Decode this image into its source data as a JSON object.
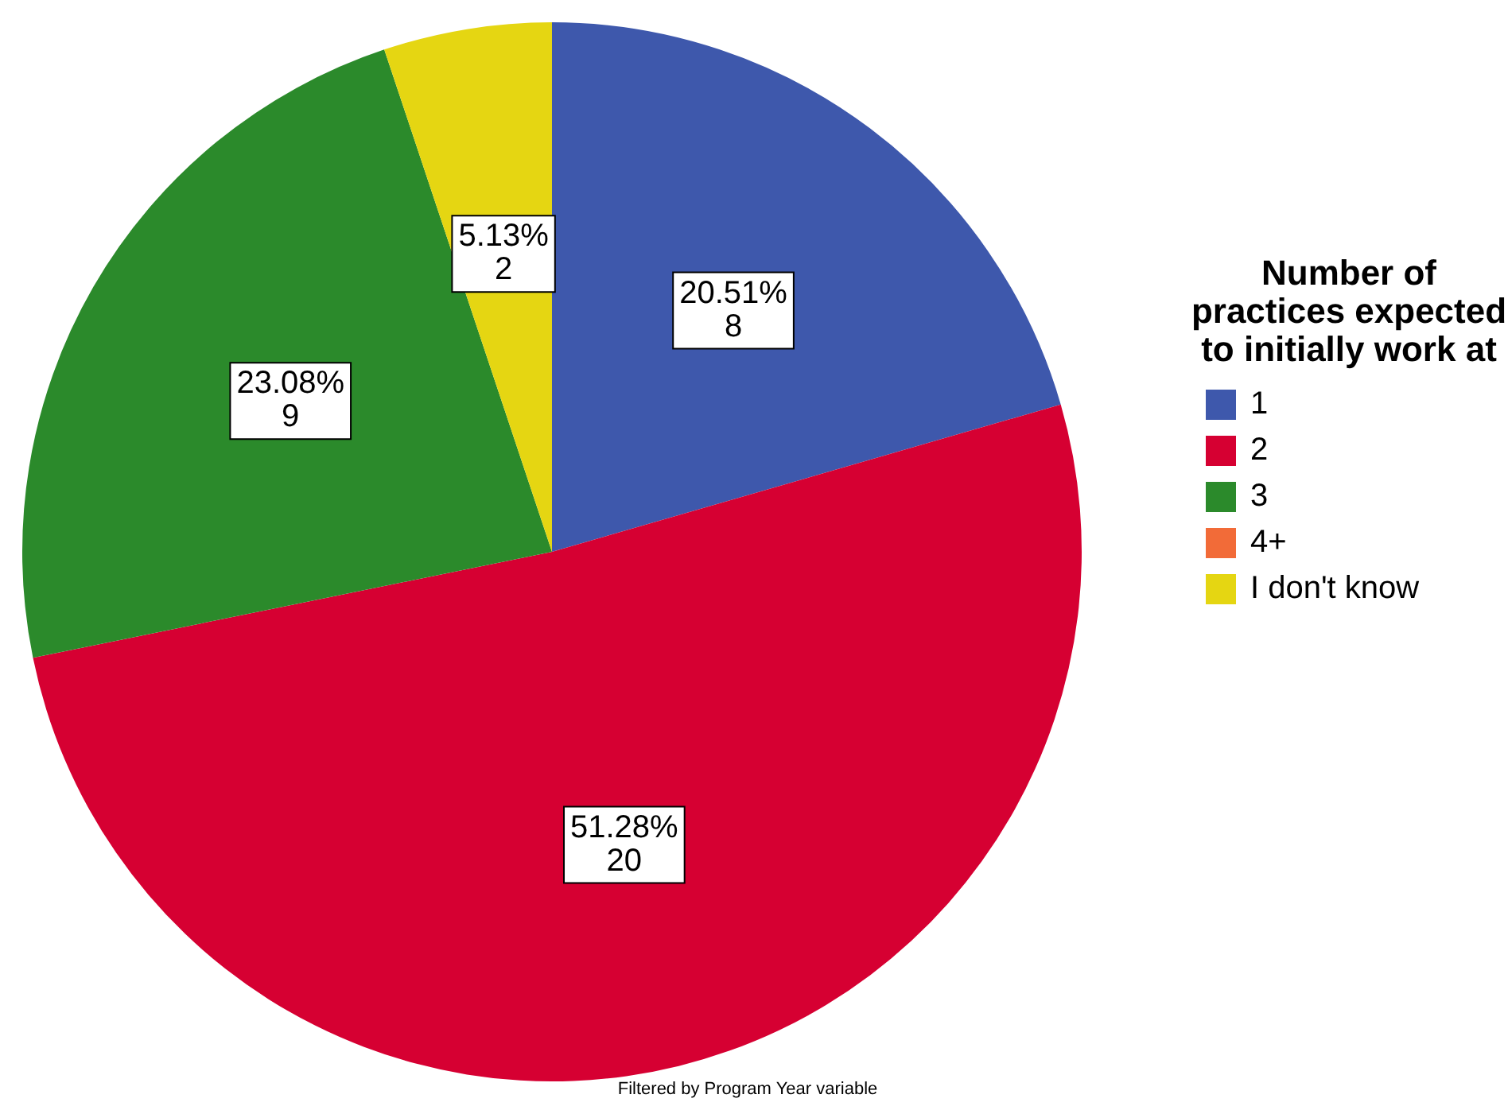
{
  "chart_data": {
    "type": "pie",
    "legend_title": "Number of practices expected to initially work at",
    "categories": [
      "1",
      "2",
      "3",
      "4+",
      "I don't know"
    ],
    "values": [
      8,
      20,
      9,
      0,
      2
    ],
    "colors": [
      "#3e58ac",
      "#d60032",
      "#2b8a2b",
      "#f26b38",
      "#e5d612"
    ],
    "value_labels": [
      "20.51%\n8",
      "51.28%\n20",
      "23.08%\n9",
      null,
      "5.13%\n2"
    ],
    "legend": "right",
    "annotations": [
      "Filtered by Program Year variable"
    ]
  }
}
